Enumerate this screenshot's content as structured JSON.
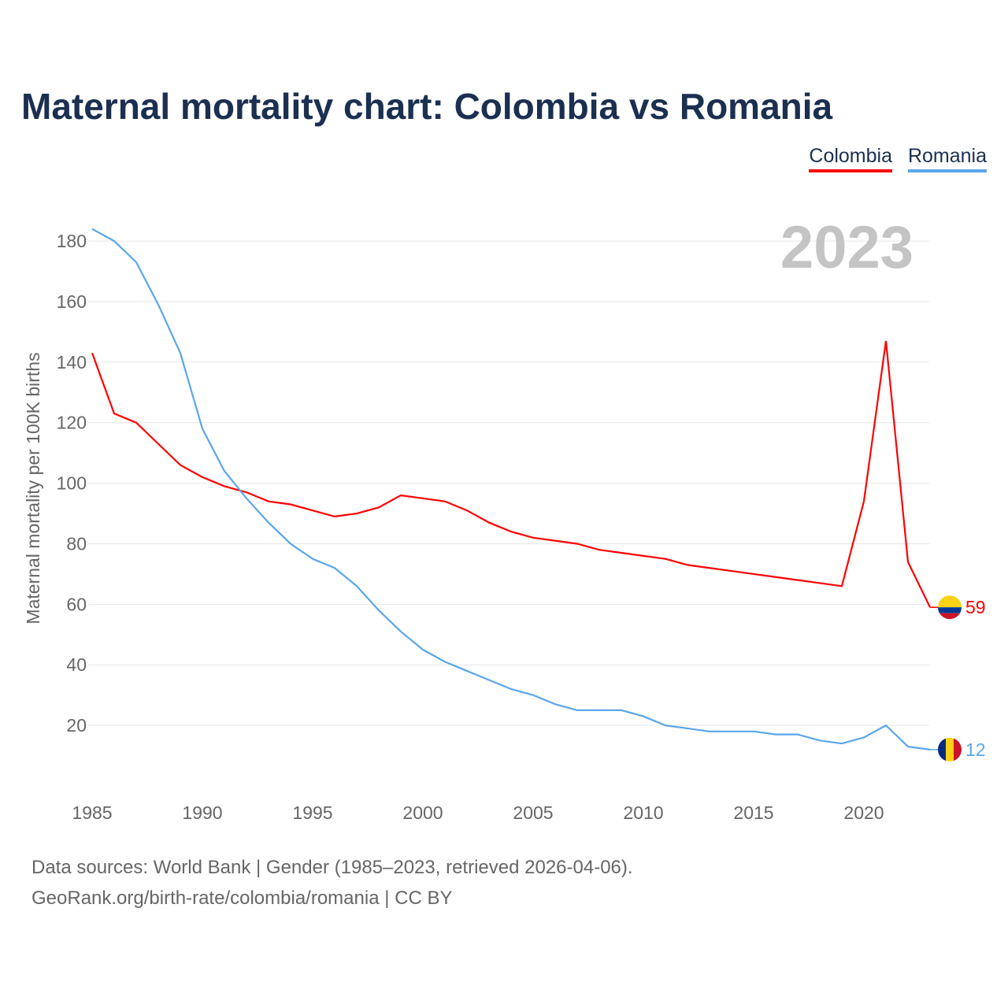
{
  "chart_data": {
    "type": "line",
    "title": "Maternal mortality chart: Colombia vs Romania",
    "ylabel": "Maternal mortality per 100K births",
    "xlabel": "",
    "year_label": "2023",
    "xlim": [
      1985,
      2023
    ],
    "ylim": [
      0,
      190
    ],
    "x_ticks": [
      1985,
      1990,
      1995,
      2000,
      2005,
      2010,
      2015,
      2020
    ],
    "y_ticks": [
      20,
      40,
      60,
      80,
      100,
      120,
      140,
      160,
      180
    ],
    "grid": true,
    "legend_position": "top-right",
    "x": [
      1985,
      1986,
      1987,
      1988,
      1989,
      1990,
      1991,
      1992,
      1993,
      1994,
      1995,
      1996,
      1997,
      1998,
      1999,
      2000,
      2001,
      2002,
      2003,
      2004,
      2005,
      2006,
      2007,
      2008,
      2009,
      2010,
      2011,
      2012,
      2013,
      2014,
      2015,
      2016,
      2017,
      2018,
      2019,
      2020,
      2021,
      2022,
      2023
    ],
    "series": [
      {
        "name": "Colombia",
        "color": "#ff0000",
        "end_label": "59",
        "values": [
          143,
          123,
          120,
          113,
          106,
          102,
          99,
          97,
          94,
          93,
          91,
          89,
          90,
          92,
          96,
          95,
          94,
          91,
          87,
          84,
          82,
          81,
          80,
          78,
          77,
          76,
          75,
          73,
          72,
          71,
          70,
          69,
          68,
          67,
          66,
          94,
          147,
          74,
          59
        ]
      },
      {
        "name": "Romania",
        "color": "#5ba6ea",
        "end_label": "12",
        "values": [
          184,
          180,
          173,
          159,
          143,
          118,
          104,
          95,
          87,
          80,
          75,
          72,
          66,
          58,
          51,
          45,
          41,
          38,
          35,
          32,
          30,
          27,
          25,
          25,
          25,
          23,
          20,
          19,
          18,
          18,
          18,
          17,
          17,
          15,
          14,
          16,
          20,
          13,
          12
        ]
      }
    ]
  },
  "footer": {
    "line1": "Data sources: World Bank | Gender (1985–2023, retrieved 2026-04-06).",
    "line2": "GeoRank.org/birth-rate/colombia/romania | CC BY"
  }
}
